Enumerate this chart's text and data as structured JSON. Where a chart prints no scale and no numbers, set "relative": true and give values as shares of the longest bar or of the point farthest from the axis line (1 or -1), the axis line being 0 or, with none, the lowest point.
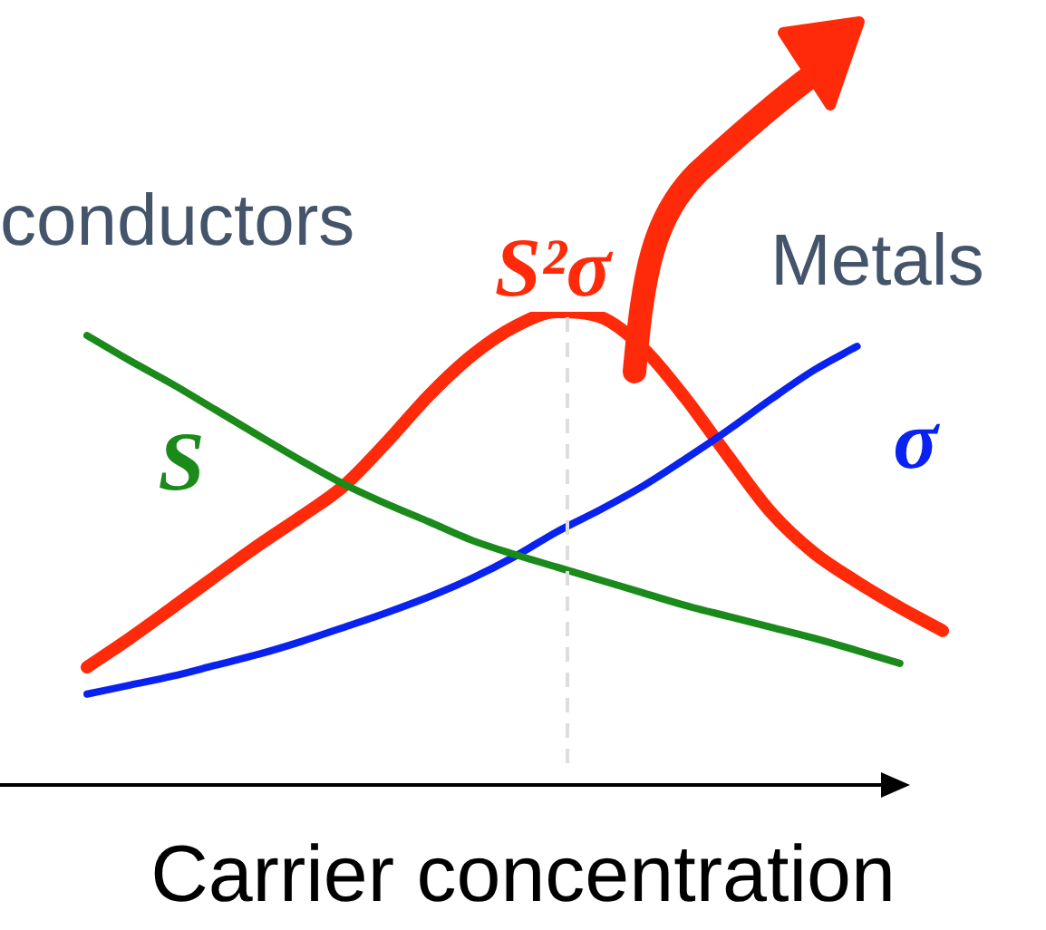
{
  "chart_data": {
    "type": "line",
    "relative": true,
    "xlabel": "Carrier concentration",
    "annotations": [
      "conductors",
      "Metals"
    ],
    "categories": [
      null,
      null,
      null,
      null,
      null,
      null,
      null,
      null,
      null,
      null,
      null,
      null,
      null,
      null,
      null,
      null,
      null,
      null,
      null,
      null,
      null
    ],
    "series": [
      {
        "name": "S",
        "color": "#1a8a1a",
        "values": [
          0.95,
          0.897,
          0.847,
          0.793,
          0.739,
          0.686,
          0.636,
          0.594,
          0.556,
          0.517,
          0.487,
          0.46,
          0.433,
          0.406,
          0.379,
          0.356,
          0.333,
          0.31,
          0.284,
          0.257,
          null
        ]
      },
      {
        "name": "σ",
        "color": "#0a22f0",
        "values": [
          0.192,
          0.211,
          0.23,
          0.253,
          0.276,
          0.303,
          0.333,
          0.364,
          0.398,
          0.437,
          0.483,
          0.536,
          0.582,
          0.632,
          0.69,
          0.751,
          0.816,
          0.877,
          0.927,
          null,
          null
        ]
      },
      {
        "name": "S²σ",
        "color": "#ff2a0a",
        "values": [
          0.249,
          0.31,
          0.375,
          0.441,
          0.506,
          0.567,
          0.632,
          0.724,
          0.824,
          0.908,
          0.969,
          1,
          0.989,
          0.923,
          0.816,
          0.693,
          0.575,
          0.49,
          0.429,
          0.375,
          0.326
        ]
      }
    ],
    "legend": false,
    "grid": false,
    "marker": "none",
    "line_style": "solid"
  }
}
